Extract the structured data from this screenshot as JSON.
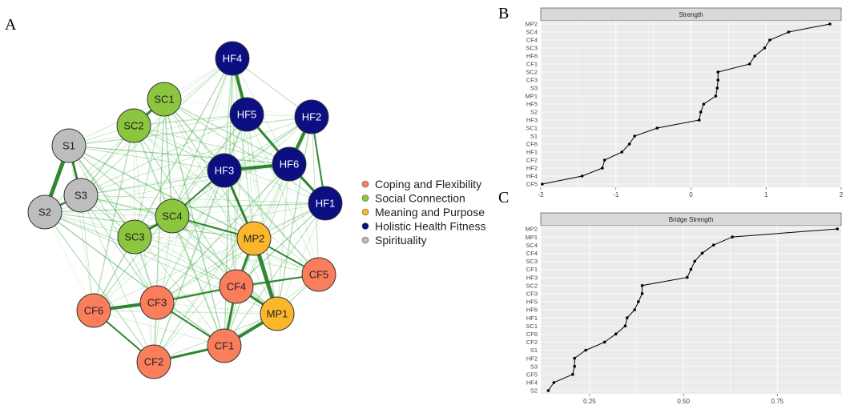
{
  "panels": {
    "a": "A",
    "b": "B",
    "c": "C"
  },
  "network": {
    "groups": [
      {
        "key": "CF",
        "label": "Coping and Flexibility",
        "color": "#fa7d5c"
      },
      {
        "key": "SC",
        "label": "Social Connection",
        "color": "#8cc63e"
      },
      {
        "key": "MP",
        "label": "Meaning and Purpose",
        "color": "#fbb72b"
      },
      {
        "key": "HF",
        "label": "Holistic Health Fitness",
        "color": "#0b0f82"
      },
      {
        "key": "S",
        "label": "Spirituality",
        "color": "#bdbdbd"
      }
    ],
    "nodes": [
      {
        "id": "HF4",
        "group": "HF"
      },
      {
        "id": "HF5",
        "group": "HF"
      },
      {
        "id": "HF2",
        "group": "HF"
      },
      {
        "id": "HF6",
        "group": "HF"
      },
      {
        "id": "HF3",
        "group": "HF"
      },
      {
        "id": "HF1",
        "group": "HF"
      },
      {
        "id": "SC1",
        "group": "SC"
      },
      {
        "id": "SC2",
        "group": "SC"
      },
      {
        "id": "SC4",
        "group": "SC"
      },
      {
        "id": "SC3",
        "group": "SC"
      },
      {
        "id": "S1",
        "group": "S"
      },
      {
        "id": "S3",
        "group": "S"
      },
      {
        "id": "S2",
        "group": "S"
      },
      {
        "id": "MP2",
        "group": "MP"
      },
      {
        "id": "MP1",
        "group": "MP"
      },
      {
        "id": "CF5",
        "group": "CF"
      },
      {
        "id": "CF4",
        "group": "CF"
      },
      {
        "id": "CF3",
        "group": "CF"
      },
      {
        "id": "CF6",
        "group": "CF"
      },
      {
        "id": "CF1",
        "group": "CF"
      },
      {
        "id": "CF2",
        "group": "CF"
      }
    ]
  },
  "chart_data": [
    {
      "type": "scatter",
      "title": "Strength",
      "xlim": [
        -2,
        2
      ],
      "xticks": [
        -2,
        -1,
        0,
        1,
        2
      ],
      "categories": [
        "MP2",
        "SC4",
        "CF4",
        "SC3",
        "HF6",
        "CF1",
        "SC2",
        "CF3",
        "S3",
        "MP1",
        "HF5",
        "S2",
        "HF3",
        "SC1",
        "S1",
        "CF6",
        "HF1",
        "CF2",
        "HF2",
        "HF4",
        "CF5"
      ],
      "values": [
        1.85,
        1.3,
        1.05,
        0.98,
        0.85,
        0.78,
        0.36,
        0.36,
        0.35,
        0.33,
        0.17,
        0.13,
        0.11,
        -0.45,
        -0.75,
        -0.82,
        -0.92,
        -1.15,
        -1.18,
        -1.45,
        -1.98
      ]
    },
    {
      "type": "scatter",
      "title": "Bridge Strength",
      "xlim": [
        0.12,
        0.92
      ],
      "xticks": [
        0.25,
        0.5,
        0.75
      ],
      "xticklabels": [
        "0.25",
        "0.50",
        "0.75"
      ],
      "categories": [
        "MP2",
        "MP1",
        "SC4",
        "CF4",
        "SC3",
        "CF1",
        "HF3",
        "SC2",
        "CF3",
        "HF5",
        "HF6",
        "HF1",
        "SC1",
        "CF6",
        "CF2",
        "S1",
        "HF2",
        "S3",
        "CF5",
        "HF4",
        "S2"
      ],
      "values": [
        0.91,
        0.63,
        0.58,
        0.55,
        0.53,
        0.52,
        0.51,
        0.39,
        0.39,
        0.38,
        0.37,
        0.35,
        0.345,
        0.32,
        0.29,
        0.24,
        0.21,
        0.21,
        0.205,
        0.155,
        0.14
      ]
    }
  ]
}
